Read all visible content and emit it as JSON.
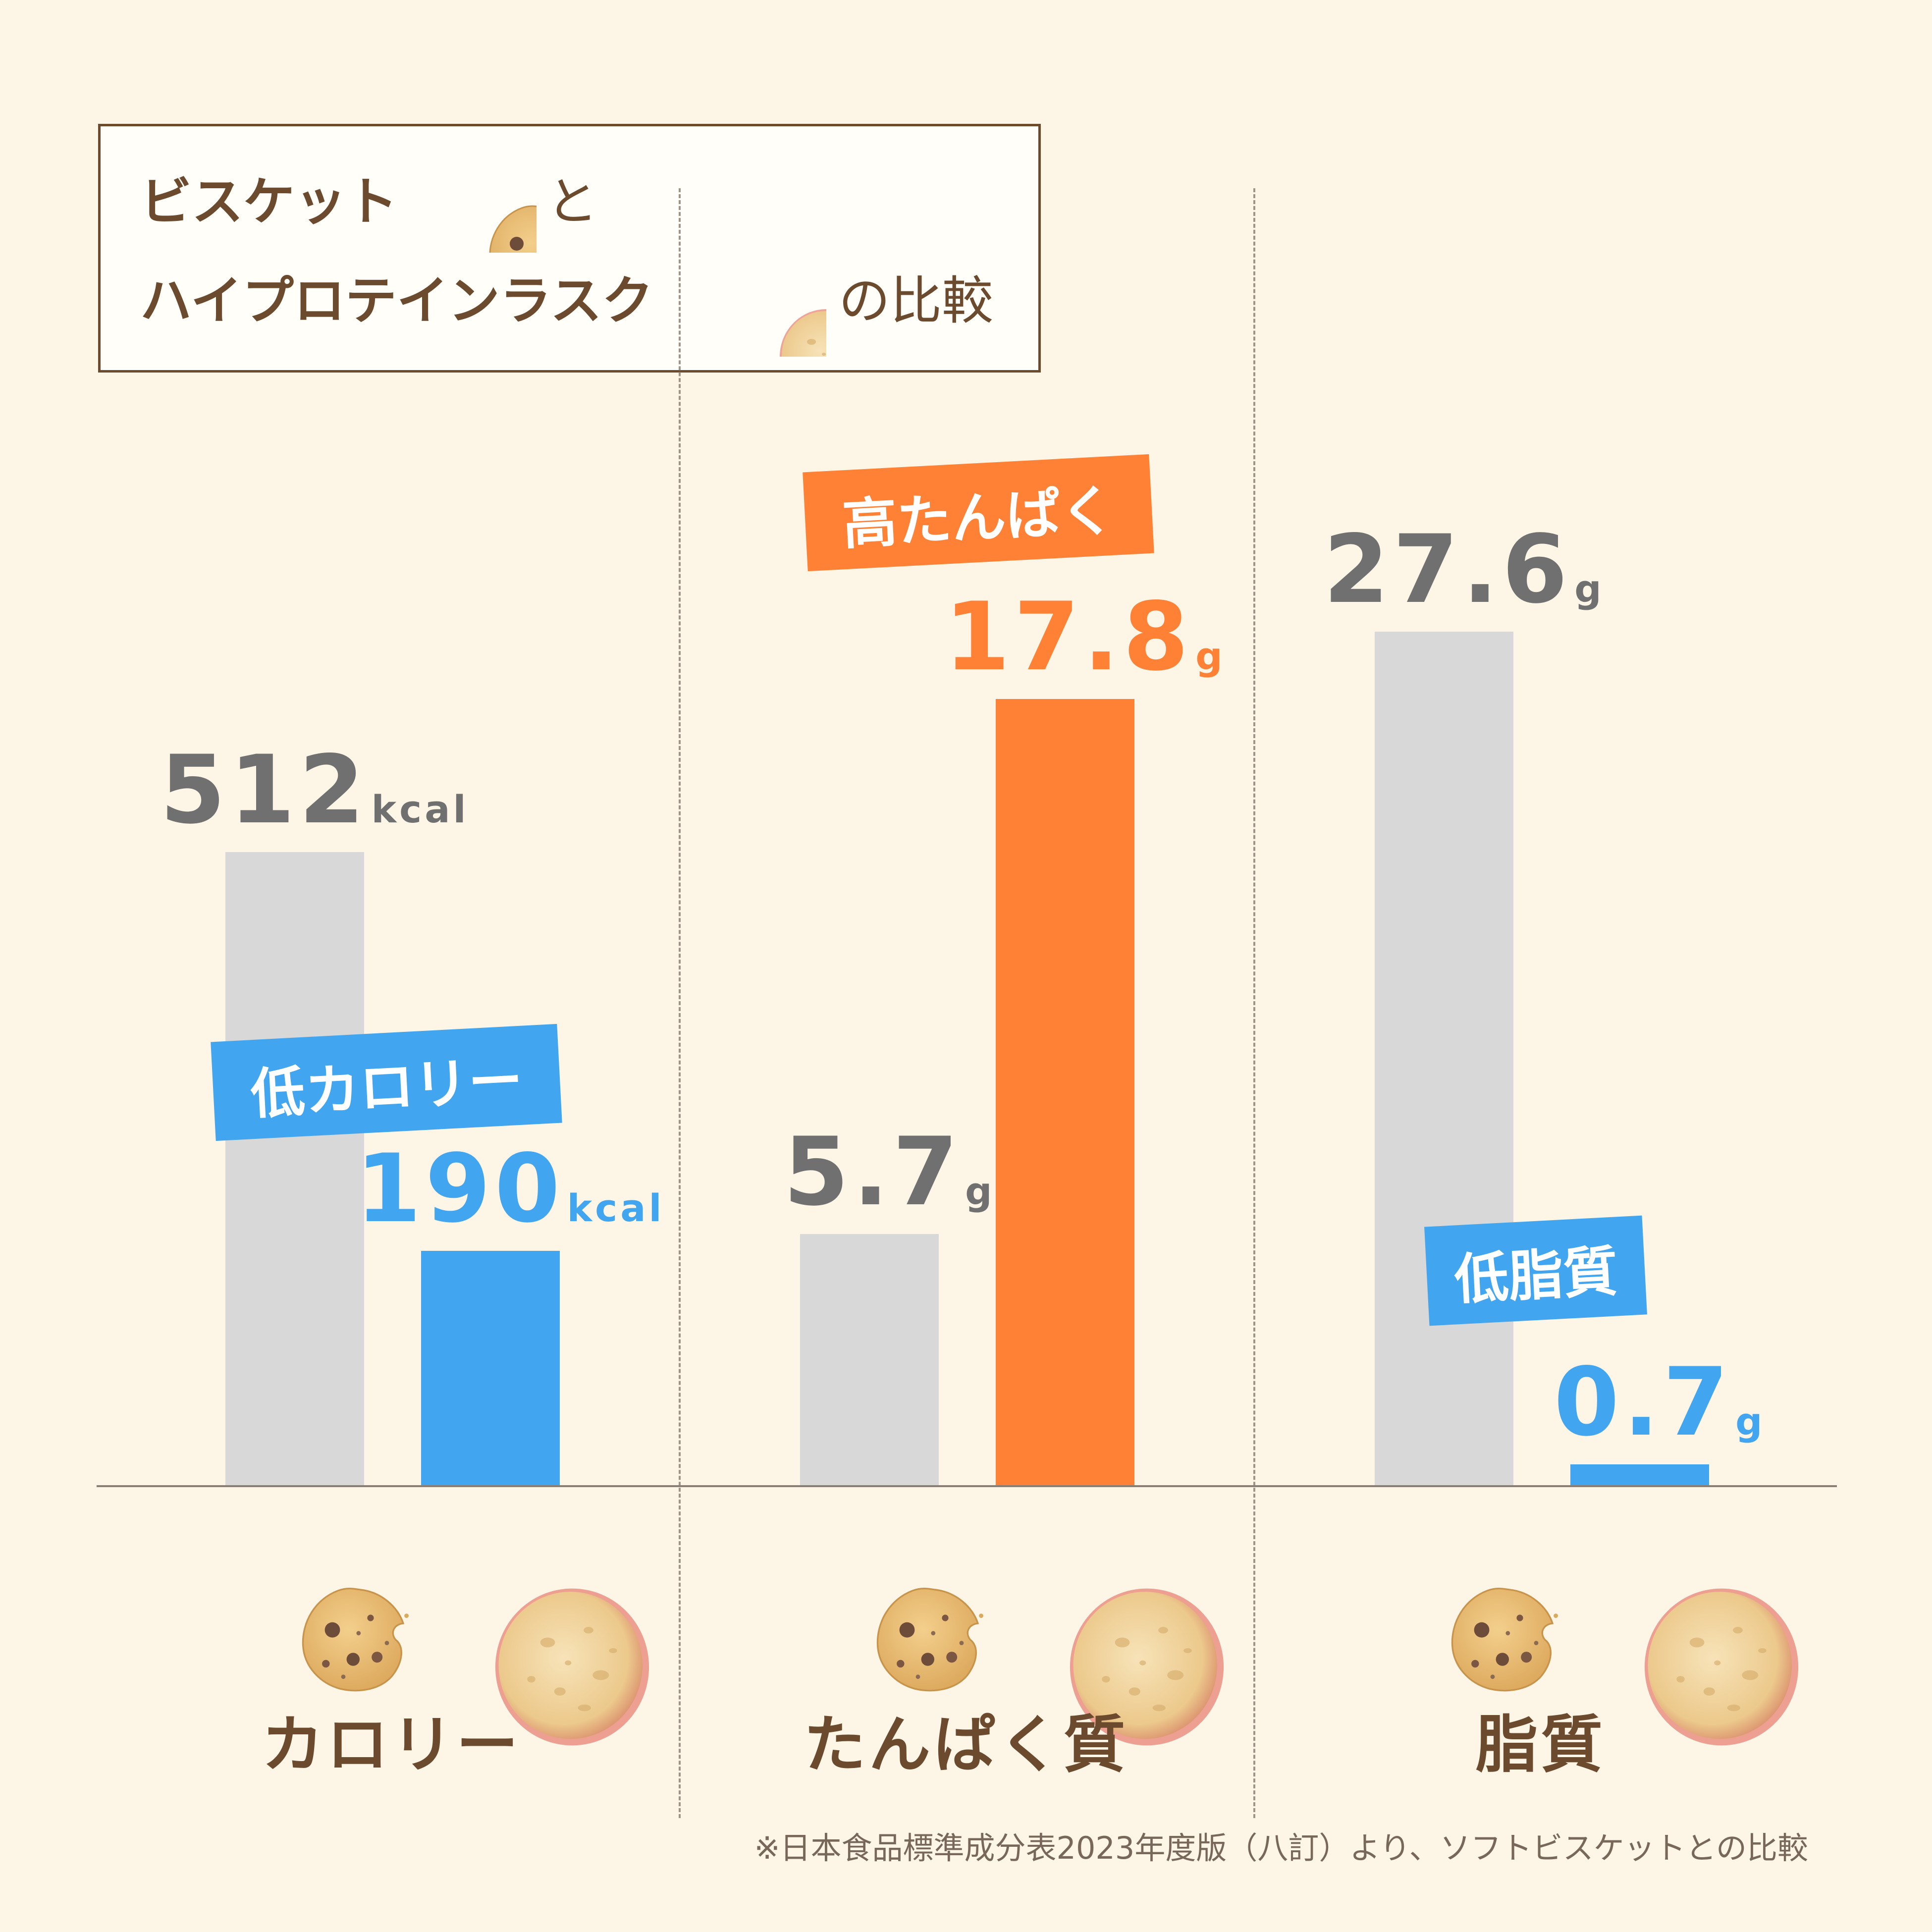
{
  "title": {
    "line1_main": "ビスケット",
    "line1_tail": "と",
    "line2_main": "ハイプロテインラスク",
    "line2_tail": "の比較"
  },
  "colors": {
    "background": "#fdf5e6",
    "biscuit_bar": "#d8d8d8",
    "rusk_low": "#42a5f0",
    "rusk_high": "#ff8136",
    "biscuit_label": "#707070",
    "brown": "#6b4a2e"
  },
  "icons": {
    "biscuit": "cookie-icon",
    "rusk": "rusk-icon"
  },
  "chart_data": {
    "type": "bar",
    "series": [
      {
        "values": [
          512,
          5.7,
          27.6
        ]
      },
      {
        "values": [
          190,
          17.8,
          0.7
        ]
      }
    ],
    "groups": [
      {
        "category": "カロリー",
        "biscuit": {
          "value": 512,
          "num": "512",
          "unit": "kcal"
        },
        "rusk": {
          "value": 190,
          "num": "190",
          "unit": "kcal",
          "tone": "low"
        },
        "badge": "低カロリー",
        "ylim": [
          0,
          1000
        ]
      },
      {
        "category": "たんぱく質",
        "biscuit": {
          "value": 5.7,
          "num": "5.7",
          "unit": "g"
        },
        "rusk": {
          "value": 17.8,
          "num": "17.8",
          "unit": "g",
          "tone": "high"
        },
        "badge": "高たんぱく",
        "ylim": [
          0,
          28
        ]
      },
      {
        "category": "脂質",
        "biscuit": {
          "value": 27.6,
          "num": "27.6",
          "unit": "g"
        },
        "rusk": {
          "value": 0.7,
          "num": "0.7",
          "unit": "g",
          "tone": "low"
        },
        "badge": "低脂質",
        "ylim": [
          0,
          40
        ]
      }
    ]
  },
  "footnote": "※日本食品標準成分表2023年度版（八訂）より、ソフトビスケットとの比較"
}
